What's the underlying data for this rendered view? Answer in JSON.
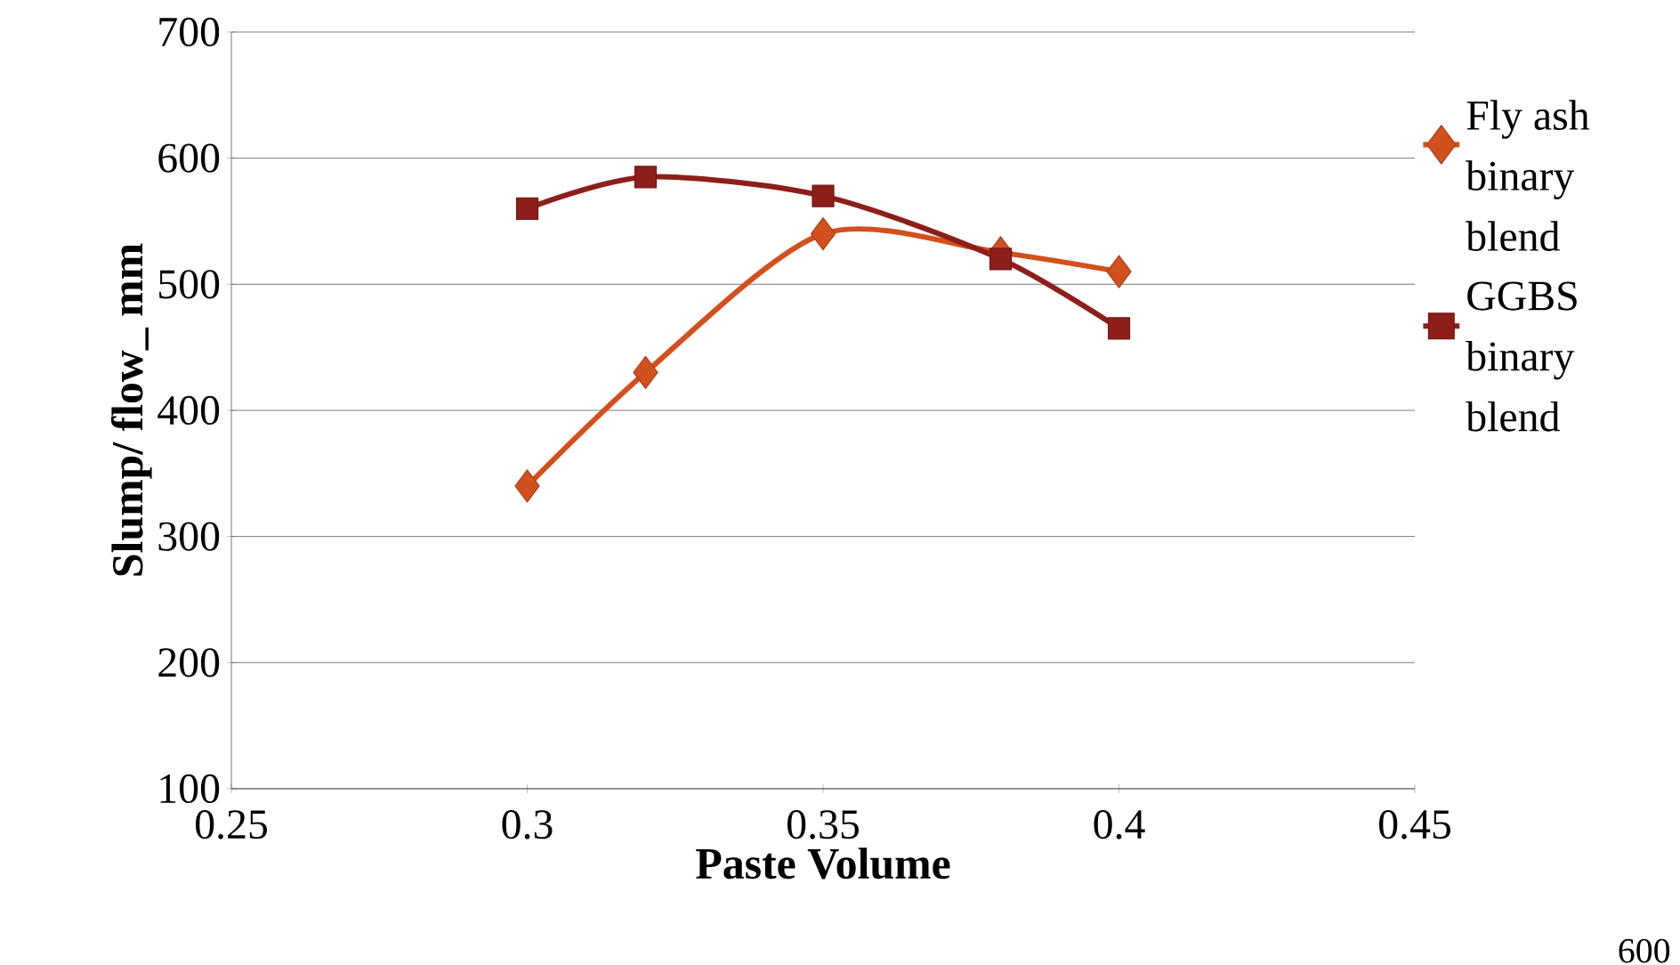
{
  "chart_data": {
    "type": "line",
    "xlabel": "Paste Volume",
    "ylabel": "Slump/ flow_ mm",
    "x": [
      0.3,
      0.32,
      0.35,
      0.38,
      0.4
    ],
    "series": [
      {
        "name": "Fly ash binary blend",
        "color": "#d2501e",
        "marker": "diamond",
        "values": [
          340,
          430,
          540,
          525,
          510
        ]
      },
      {
        "name": "GGBS binary blend",
        "color": "#8e1e1a",
        "marker": "square",
        "values": [
          560,
          585,
          570,
          520,
          465
        ]
      }
    ],
    "xlim": [
      0.25,
      0.45
    ],
    "xticks": [
      0.25,
      0.3,
      0.35,
      0.4,
      0.45
    ],
    "ylim": [
      100,
      700
    ],
    "yticks": [
      100,
      200,
      300,
      400,
      500,
      600,
      700
    ],
    "grid": "y",
    "legend": "right",
    "line_style": "solid",
    "annotations": [
      "600"
    ]
  }
}
